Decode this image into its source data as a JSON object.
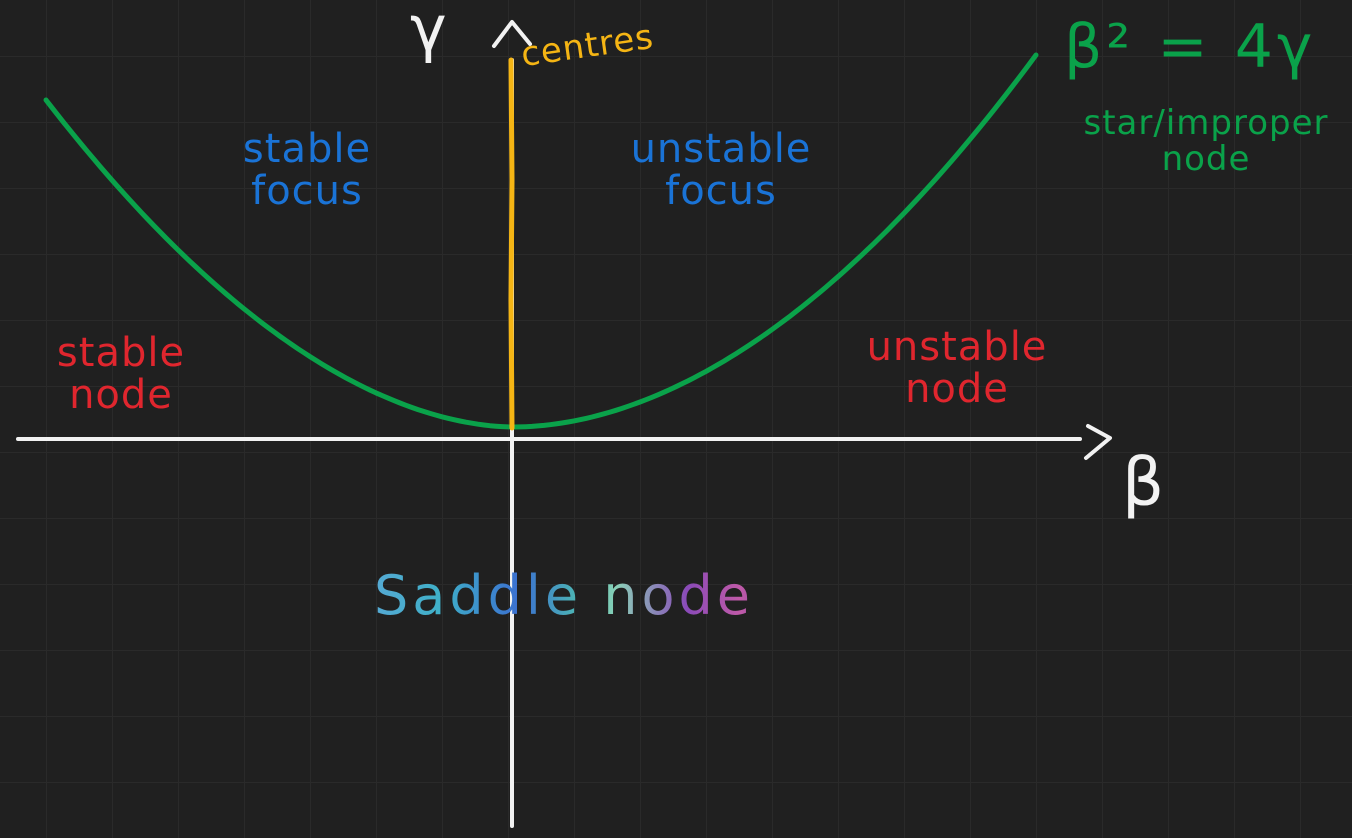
{
  "axes": {
    "x_label": "β",
    "y_label": "γ"
  },
  "curve": {
    "equation": "β² = 4γ",
    "label": "star/improper\nnode"
  },
  "centres_label": "centres",
  "regions": {
    "stable_focus": "stable\nfocus",
    "unstable_focus": "unstable\nfocus",
    "stable_node": "stable\nnode",
    "unstable_node": "unstable\nnode",
    "saddle_node": "Saddle node"
  },
  "colors": {
    "curve": "#0aa24a",
    "centres_line": "#f5b514",
    "focus_labels": "#1a73d6",
    "node_labels": "#e0262e",
    "axes": "#f2f2f2"
  }
}
